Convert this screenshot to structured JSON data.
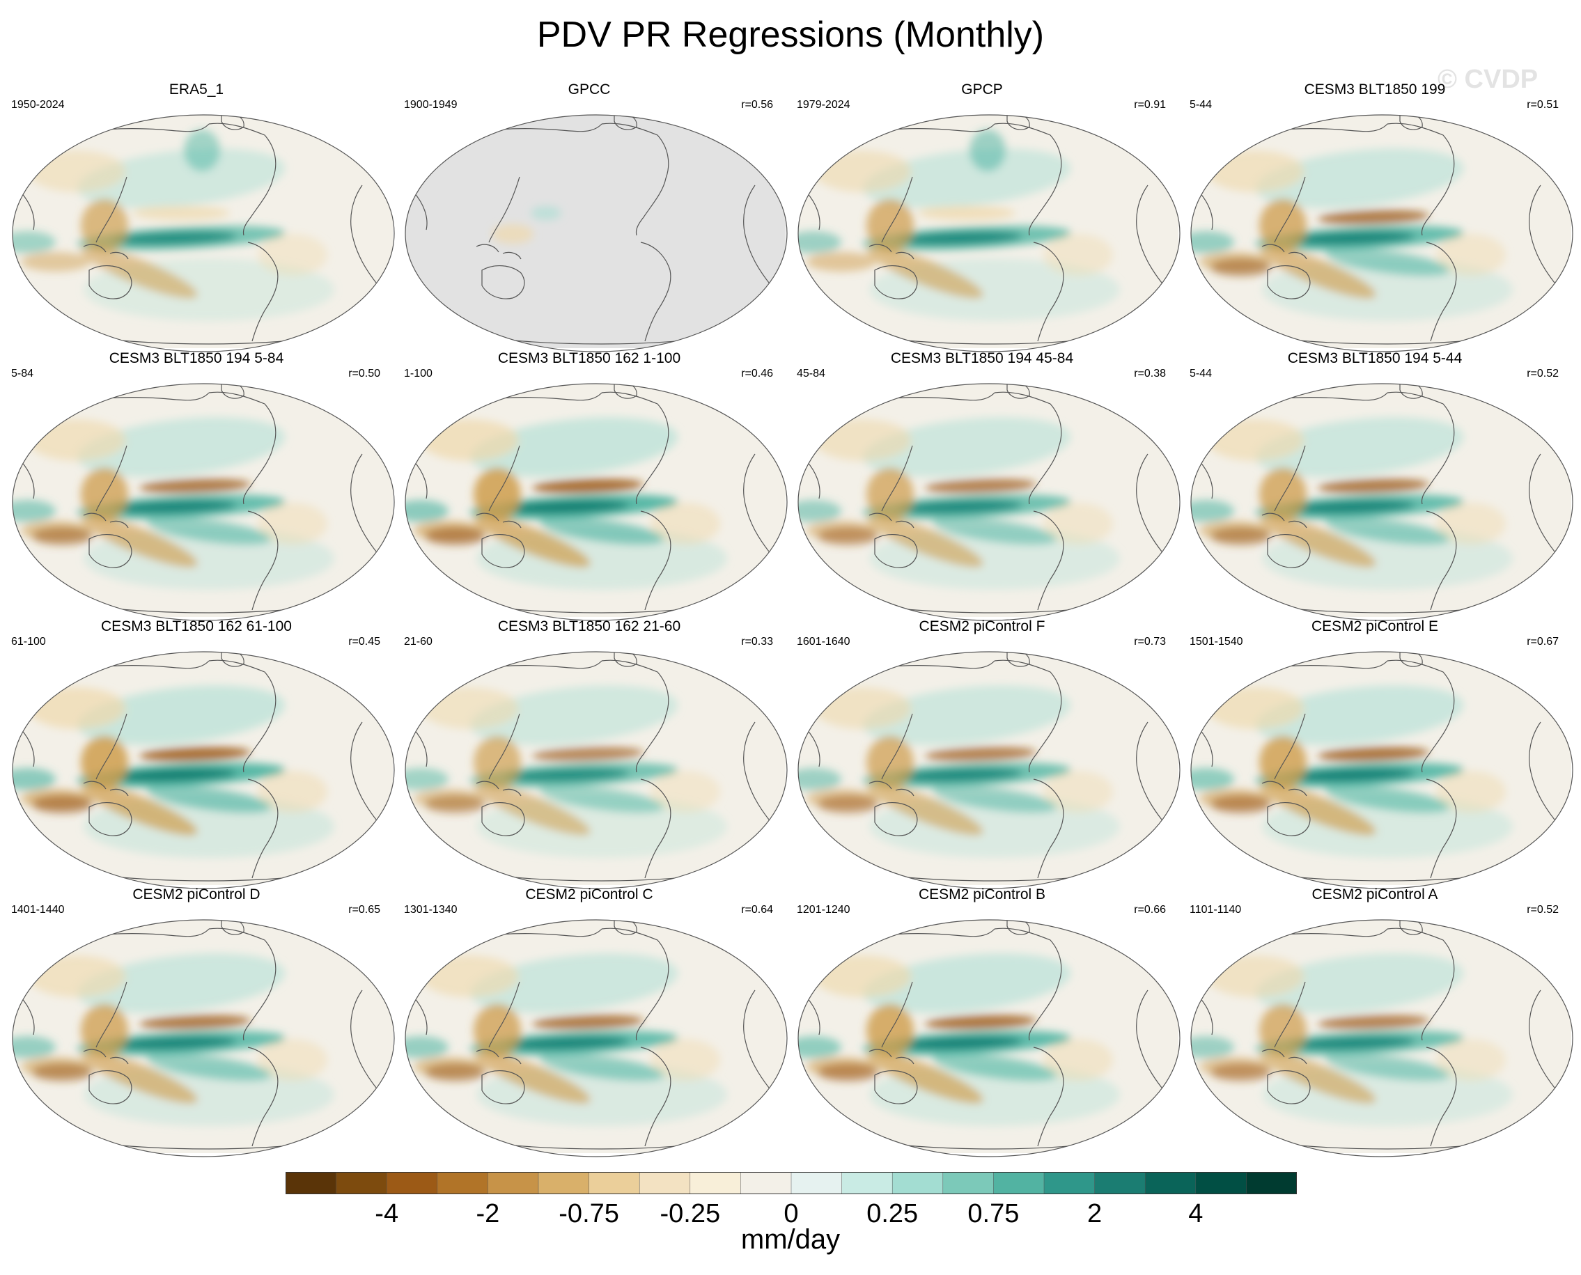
{
  "title": "PDV PR Regressions (Monthly)",
  "watermark": "© CVDP",
  "units": "mm/day",
  "colors": {
    "ocean_base": "#f3f0e8",
    "masked": "#e2e2e2",
    "coast": "#555555",
    "border": "#555555",
    "teal_dark": "#017a6e",
    "teal_mid": "#48b3a0",
    "teal_light": "#a5ddd2",
    "brown_dark": "#9c5a1a",
    "brown_mid": "#cf9d4d",
    "brown_light": "#efd9ad"
  },
  "colorbar": {
    "colors": [
      "#5a3408",
      "#7d4b0e",
      "#9c5a16",
      "#b17428",
      "#c79348",
      "#d9b06a",
      "#ebcf9a",
      "#f3e2c2",
      "#f8efd9",
      "#f3f0e8",
      "#e6f2f0",
      "#c9ebe4",
      "#a3ddd2",
      "#7cc9b9",
      "#52b3a2",
      "#2f978a",
      "#1b7d72",
      "#0a6459",
      "#014f44",
      "#003b30"
    ],
    "labels": [
      "-4",
      "-2",
      "-0.75",
      "-0.25",
      "0",
      "0.25",
      "0.75",
      "2",
      "4"
    ]
  },
  "panels": [
    {
      "title": "ERA5_1",
      "years": "1950-2024",
      "corr": "",
      "masked": false,
      "pattern": "obs",
      "strength": 0.8
    },
    {
      "title": "GPCC",
      "years": "1900-1949",
      "corr": "r=0.56",
      "masked": true,
      "pattern": "land",
      "strength": 0.4
    },
    {
      "title": "GPCP",
      "years": "1979-2024",
      "corr": "r=0.91",
      "masked": false,
      "pattern": "obs",
      "strength": 0.85
    },
    {
      "title": "CESM3 BLT1850 199",
      "years": "5-44",
      "corr": "r=0.51",
      "masked": false,
      "pattern": "model",
      "strength": 0.9
    },
    {
      "title": "CESM3 BLT1850 194 5-84",
      "years": "5-84",
      "corr": "r=0.50",
      "masked": false,
      "pattern": "model",
      "strength": 0.9
    },
    {
      "title": "CESM3 BLT1850 162 1-100",
      "years": "1-100",
      "corr": "r=0.46",
      "masked": false,
      "pattern": "model",
      "strength": 1.0
    },
    {
      "title": "CESM3 BLT1850 194 45-84",
      "years": "45-84",
      "corr": "r=0.38",
      "masked": false,
      "pattern": "model",
      "strength": 0.85
    },
    {
      "title": "CESM3 BLT1850 194 5-44",
      "years": "5-44",
      "corr": "r=0.52",
      "masked": false,
      "pattern": "model",
      "strength": 0.9
    },
    {
      "title": "CESM3 BLT1850 162 61-100",
      "years": "61-100",
      "corr": "r=0.45",
      "masked": false,
      "pattern": "model",
      "strength": 1.0
    },
    {
      "title": "CESM3 BLT1850 162 21-60",
      "years": "21-60",
      "corr": "r=0.33",
      "masked": false,
      "pattern": "model",
      "strength": 0.8
    },
    {
      "title": "CESM2 piControl F",
      "years": "1601-1640",
      "corr": "r=0.73",
      "masked": false,
      "pattern": "model",
      "strength": 0.85
    },
    {
      "title": "CESM2 piControl E",
      "years": "1501-1540",
      "corr": "r=0.67",
      "masked": false,
      "pattern": "model",
      "strength": 0.95
    },
    {
      "title": "CESM2 piControl D",
      "years": "1401-1440",
      "corr": "r=0.65",
      "masked": false,
      "pattern": "model",
      "strength": 0.9
    },
    {
      "title": "CESM2 piControl C",
      "years": "1301-1340",
      "corr": "r=0.64",
      "masked": false,
      "pattern": "model",
      "strength": 0.9
    },
    {
      "title": "CESM2 piControl B",
      "years": "1201-1240",
      "corr": "r=0.66",
      "masked": false,
      "pattern": "model",
      "strength": 0.95
    },
    {
      "title": "CESM2 piControl A",
      "years": "1101-1140",
      "corr": "r=0.52",
      "masked": false,
      "pattern": "model",
      "strength": 0.85
    }
  ]
}
